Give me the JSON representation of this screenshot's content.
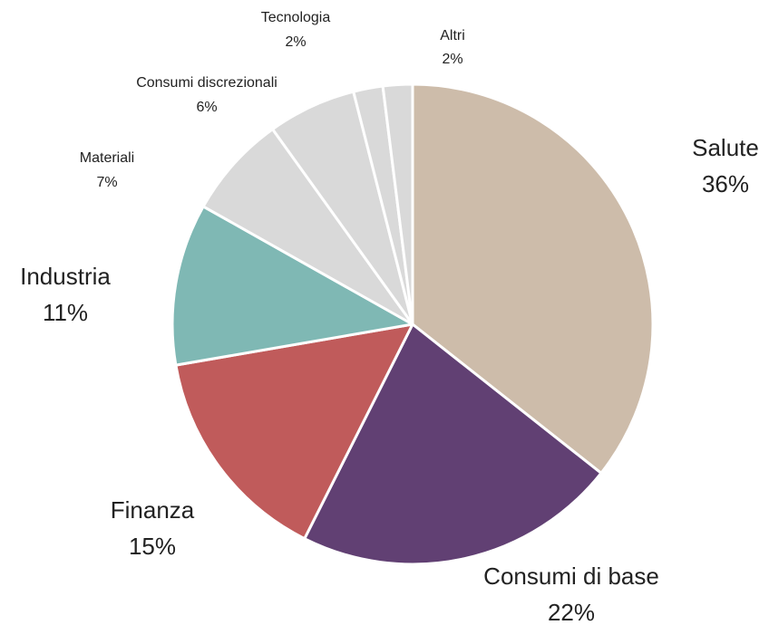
{
  "chart_data": {
    "type": "pie",
    "categories": [
      "Salute",
      "Consumi di base",
      "Finanza",
      "Industria",
      "Materiali",
      "Consumi discrezionali",
      "Tecnologia",
      "Altri"
    ],
    "values": [
      36,
      22,
      15,
      11,
      7,
      6,
      2,
      2
    ],
    "value_labels": [
      "36%",
      "22%",
      "15%",
      "11%",
      "7%",
      "6%",
      "2%",
      "2%"
    ],
    "colors": [
      "#cdbcaa",
      "#614073",
      "#c05b5b",
      "#7fb8b4",
      "#d9d9d9",
      "#d9d9d9",
      "#d9d9d9",
      "#d9d9d9"
    ]
  }
}
